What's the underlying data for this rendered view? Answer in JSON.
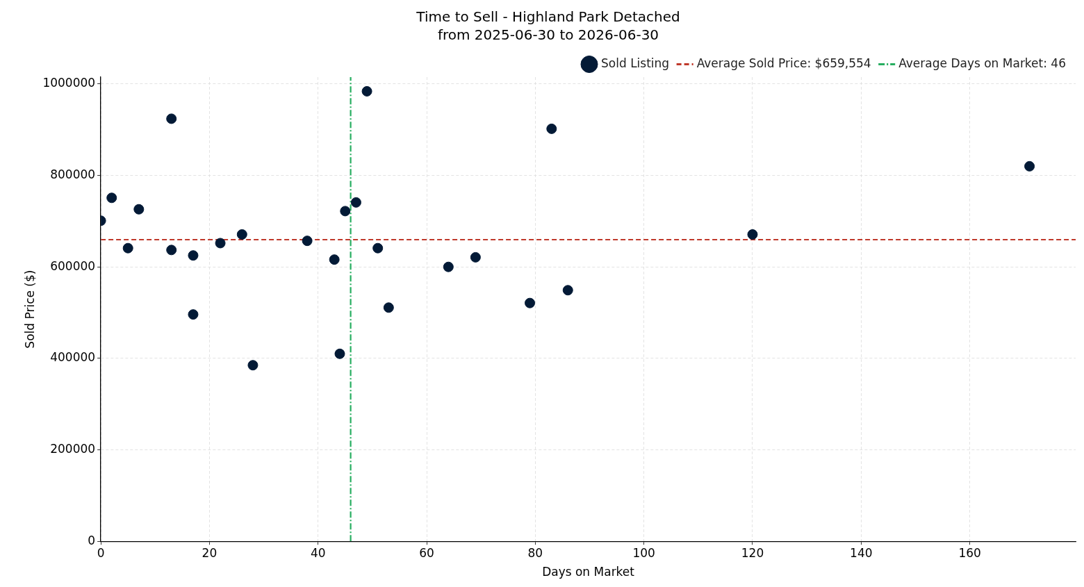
{
  "chart_data": {
    "type": "scatter",
    "title": "Time to Sell - Highland Park Detached",
    "subtitle": "from 2025-06-30 to 2026-06-30",
    "xlabel": "Days on Market",
    "ylabel": "Sold Price ($)",
    "xlim": [
      0,
      179.5
    ],
    "xticks": [
      0,
      20,
      40,
      60,
      80,
      100,
      120,
      140,
      160
    ],
    "ylim": [
      0,
      1015000
    ],
    "yticks": [
      0,
      200000,
      400000,
      600000,
      800000,
      1000000
    ],
    "series": [
      {
        "name": "Sold Listing",
        "color": "#031a36",
        "x": [
          0,
          2,
          5,
          7,
          13,
          13,
          17,
          17,
          22,
          26,
          28,
          38,
          43,
          44,
          45,
          47,
          49,
          51,
          53,
          64,
          69,
          79,
          83,
          86,
          120,
          171
        ],
        "values": [
          701000,
          751000,
          641000,
          726000,
          924000,
          637000,
          625000,
          496000,
          652000,
          671000,
          385000,
          657000,
          616000,
          410000,
          722000,
          741000,
          984000,
          641000,
          511000,
          600000,
          621000,
          521000,
          902000,
          549000,
          671000,
          820000
        ]
      }
    ],
    "ref_lines": [
      {
        "axis": "y",
        "value": 659554,
        "label": "Average Sold Price: $659,554",
        "color": "#c0392b",
        "line_style": "dashed"
      },
      {
        "axis": "x",
        "value": 46,
        "label": "Average Days on Market: 46",
        "color": "#27ae60",
        "line_style": "dashdot"
      }
    ],
    "grid": true,
    "legend": "top right",
    "marker": "circle"
  }
}
